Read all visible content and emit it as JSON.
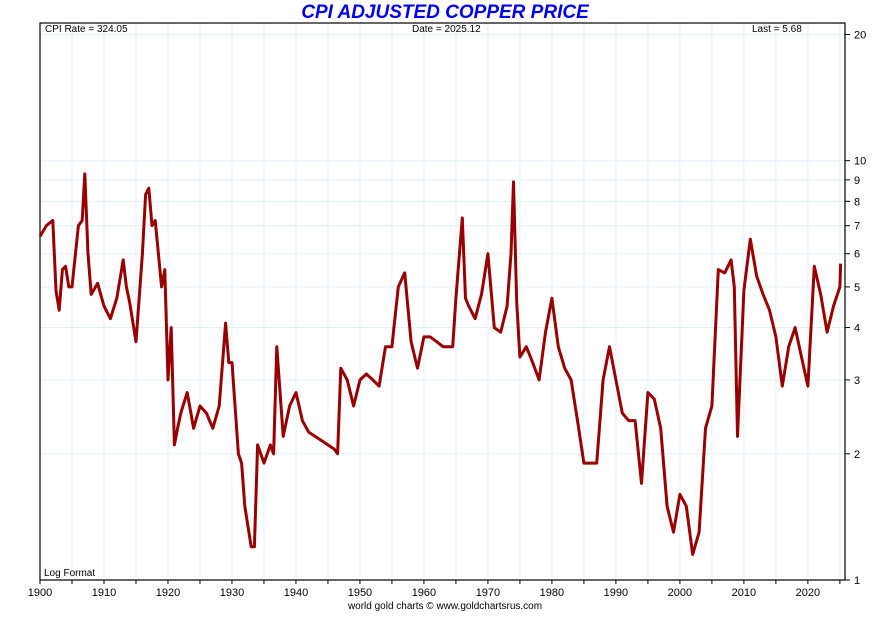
{
  "chart_data": {
    "type": "line",
    "title": "CPI ADJUSTED COPPER PRICE",
    "header": {
      "cpi_rate": "CPI Rate = 324.05",
      "date": "Date = 2025.12",
      "last": "Last = 5.68"
    },
    "scale_note": "Log Format",
    "footer": "world gold charts © www.goldchartsrus.com",
    "xlim": [
      1900,
      2025.8
    ],
    "ylim": [
      1,
      21.3
    ],
    "yscale": "log",
    "x_ticks": [
      1900,
      1910,
      1920,
      1930,
      1940,
      1950,
      1960,
      1970,
      1980,
      1990,
      2000,
      2010,
      2020
    ],
    "y_ticks": [
      1,
      2,
      3,
      4,
      5,
      6,
      7,
      8,
      9,
      10,
      20
    ],
    "grid": true,
    "line_color": "#990000",
    "series": [
      {
        "name": "CPI adjusted copper price",
        "x": [
          1900,
          1901,
          1902,
          1902.5,
          1903,
          1903.5,
          1904,
          1904.5,
          1905,
          1906,
          1906.6,
          1907,
          1907.5,
          1908,
          1909,
          1910,
          1911,
          1912,
          1913,
          1913.5,
          1914,
          1915,
          1916,
          1916.5,
          1917,
          1917.5,
          1918,
          1919,
          1919.5,
          1920,
          1920.5,
          1921,
          1921.5,
          1922,
          1923,
          1924,
          1925,
          1926,
          1927,
          1928,
          1929,
          1929.5,
          1930,
          1931,
          1931.5,
          1932,
          1933,
          1933.5,
          1934,
          1935,
          1936,
          1936.5,
          1937,
          1938,
          1939,
          1940,
          1941,
          1942,
          1944,
          1946,
          1946.5,
          1947,
          1948,
          1949,
          1950,
          1951,
          1952,
          1953,
          1954,
          1955,
          1956,
          1957,
          1958,
          1959,
          1960,
          1961,
          1962,
          1963,
          1964.5,
          1965,
          1966,
          1966.5,
          1967,
          1968,
          1969,
          1970,
          1971,
          1972,
          1973,
          1973.6,
          1974,
          1974.5,
          1975,
          1976,
          1977,
          1978,
          1979,
          1980,
          1981,
          1982,
          1983,
          1984,
          1985,
          1986,
          1987,
          1988,
          1989,
          1990,
          1991,
          1992,
          1993,
          1994,
          1995,
          1996,
          1997,
          1998,
          1999,
          2000,
          2001,
          2002,
          2003,
          2004,
          2005,
          2006,
          2007,
          2008,
          2008.5,
          2009,
          2010,
          2011,
          2012,
          2013,
          2014,
          2015,
          2016,
          2017,
          2018,
          2019,
          2020,
          2021,
          2022,
          2023,
          2024,
          2025,
          2025.12
        ],
        "values": [
          6.6,
          7.0,
          7.2,
          4.9,
          4.4,
          5.5,
          5.6,
          5.0,
          5.0,
          7.0,
          7.2,
          9.3,
          6.0,
          4.8,
          5.1,
          4.5,
          4.2,
          4.7,
          5.8,
          5.0,
          4.6,
          3.7,
          6.0,
          8.3,
          8.6,
          7.0,
          7.2,
          5.0,
          5.5,
          3.0,
          4.0,
          2.1,
          2.3,
          2.5,
          2.8,
          2.3,
          2.6,
          2.5,
          2.3,
          2.6,
          4.1,
          3.3,
          3.3,
          2.0,
          1.9,
          1.5,
          1.2,
          1.2,
          2.1,
          1.9,
          2.1,
          2.0,
          3.6,
          2.2,
          2.6,
          2.8,
          2.4,
          2.25,
          2.15,
          2.05,
          2.0,
          3.2,
          3.0,
          2.6,
          3.0,
          3.1,
          3.0,
          2.9,
          3.6,
          3.6,
          5.0,
          5.4,
          3.7,
          3.2,
          3.8,
          3.8,
          3.7,
          3.6,
          3.6,
          4.7,
          7.3,
          4.7,
          4.5,
          4.2,
          4.8,
          6.0,
          4.0,
          3.9,
          4.5,
          6.0,
          8.9,
          4.6,
          3.4,
          3.6,
          3.3,
          3.0,
          3.9,
          4.7,
          3.6,
          3.2,
          3.0,
          2.4,
          1.9,
          1.9,
          1.9,
          3.0,
          3.6,
          3.0,
          2.5,
          2.4,
          2.4,
          1.7,
          2.8,
          2.7,
          2.3,
          1.5,
          1.3,
          1.6,
          1.5,
          1.15,
          1.3,
          2.3,
          2.6,
          5.5,
          5.4,
          5.8,
          5.0,
          2.2,
          4.9,
          6.5,
          5.3,
          4.8,
          4.4,
          3.8,
          2.9,
          3.6,
          4.0,
          3.4,
          2.9,
          5.6,
          4.8,
          3.9,
          4.5,
          5.0,
          5.68
        ]
      }
    ]
  }
}
